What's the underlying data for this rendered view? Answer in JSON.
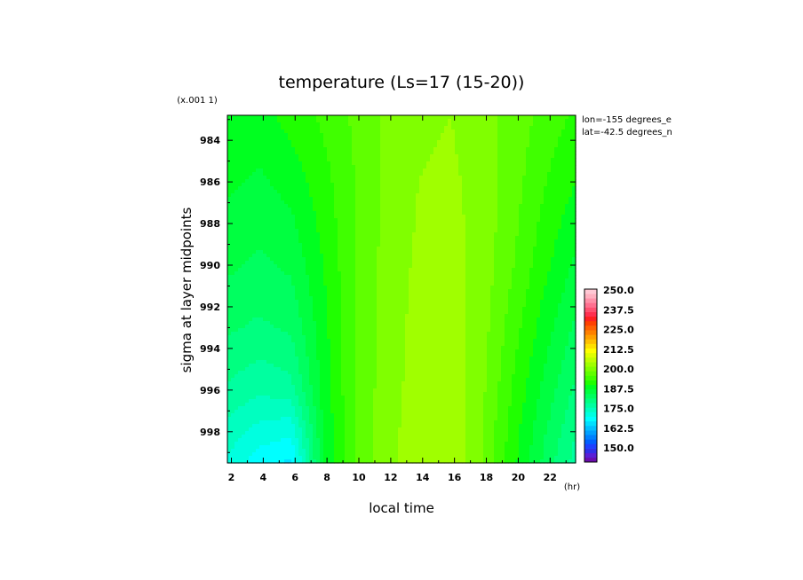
{
  "chart_data": {
    "type": "heatmap",
    "title": "temperature (Ls=17 (15-20))",
    "xlabel": "local time",
    "xunit": "(hr)",
    "ylabel": "sigma at layer midpoints",
    "yscale_label": "(x.001 1)",
    "annotations": [
      "lon=-155 degrees_e",
      "lat=-42.5 degrees_n"
    ],
    "x_ticks": [
      2,
      4,
      6,
      8,
      10,
      12,
      14,
      16,
      18,
      20,
      22
    ],
    "y_ticks": [
      984,
      986,
      988,
      990,
      992,
      994,
      996,
      998
    ],
    "xlim": [
      1.75,
      23.6
    ],
    "ylim": [
      982.8,
      999.5
    ],
    "y_reversed": true,
    "x": [
      1.75,
      3.75,
      5.75,
      7.75,
      9.75,
      11.75,
      13.75,
      15.75,
      17.75,
      19.75,
      21.75,
      23.6
    ],
    "y": [
      982.8,
      986,
      990,
      993,
      996,
      998,
      999.5
    ],
    "z": [
      [
        187.5,
        186.5,
        188.5,
        190.5,
        193.0,
        195.5,
        197.0,
        197.5,
        196.0,
        194.0,
        191.5,
        189.5
      ],
      [
        185.5,
        184.5,
        186.0,
        189.0,
        192.5,
        195.5,
        197.5,
        198.0,
        196.5,
        193.5,
        190.0,
        187.5
      ],
      [
        183.0,
        182.0,
        183.0,
        187.5,
        192.5,
        196.0,
        198.0,
        198.5,
        196.5,
        192.5,
        188.0,
        184.5
      ],
      [
        180.5,
        179.5,
        180.5,
        186.5,
        192.5,
        196.0,
        198.5,
        199.0,
        196.0,
        191.0,
        186.0,
        182.0
      ],
      [
        177.0,
        175.5,
        176.5,
        186.0,
        192.5,
        196.5,
        198.5,
        199.5,
        195.5,
        189.5,
        184.0,
        179.5
      ],
      [
        174.0,
        171.5,
        170.5,
        185.0,
        192.5,
        196.5,
        199.0,
        200.0,
        195.0,
        188.5,
        182.5,
        177.5
      ],
      [
        172.0,
        168.5,
        167.0,
        184.5,
        192.5,
        196.5,
        199.0,
        200.0,
        195.0,
        188.0,
        181.5,
        176.5
      ]
    ],
    "colorbar": {
      "labels": [
        "250.0",
        "237.5",
        "225.0",
        "212.5",
        "200.0",
        "187.5",
        "175.0",
        "162.5",
        "150.0"
      ],
      "levels": [
        145,
        147.5,
        150,
        152.5,
        155,
        157.5,
        160,
        162.5,
        165,
        167.5,
        170,
        172.5,
        175,
        177.5,
        180,
        182.5,
        185,
        187.5,
        190,
        192.5,
        195,
        197.5,
        200,
        202.5,
        205,
        207.5,
        210,
        212.5,
        215,
        217.5,
        220,
        222.5,
        225,
        227.5,
        230,
        232.5,
        235,
        237.5,
        240,
        242.5,
        245,
        247.5,
        250,
        252.5
      ],
      "colors": [
        "#6a0dad",
        "#5a1fd6",
        "#3030e8",
        "#1e40ff",
        "#0060ff",
        "#0080ff",
        "#00a0ff",
        "#00c0ff",
        "#00e0ff",
        "#00ffff",
        "#00ffe0",
        "#00ffc0",
        "#00ffa0",
        "#00ff80",
        "#00ff60",
        "#00ff40",
        "#00ff20",
        "#20ff00",
        "#40ff00",
        "#60ff00",
        "#80ff00",
        "#a0ff00",
        "#c0ff00",
        "#e0ff00",
        "#ffff00",
        "#ffe000",
        "#ffc000",
        "#ffa000",
        "#ff8000",
        "#ff6000",
        "#ff4000",
        "#ff2020",
        "#ff3050",
        "#ff5070",
        "#ff7090",
        "#ff90a8",
        "#ffb0c0",
        "#ffc8d4"
      ]
    }
  }
}
